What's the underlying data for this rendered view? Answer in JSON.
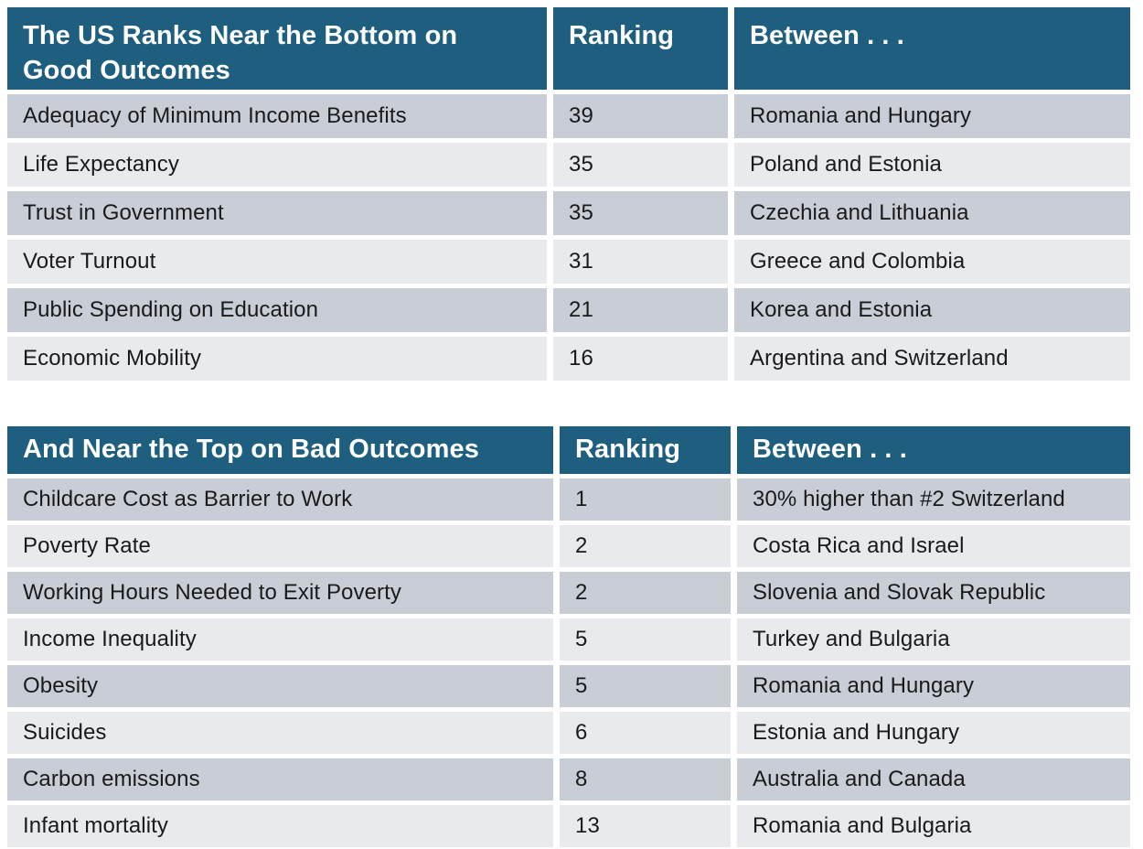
{
  "colors": {
    "header_bg": "#1E5F80",
    "header_text": "#FFFFFF",
    "row_dark": "#C9CED6",
    "row_light": "#E8EAEE",
    "row_text": "#1A1A1A",
    "page_bg": "#FFFFFF"
  },
  "chart_data": [
    {
      "type": "table",
      "title": "The US Ranks Near the Bottom on Good Outcomes",
      "title_lines": [
        "The US Ranks Near the Bottom on",
        "Good Outcomes"
      ],
      "columns": [
        "The US Ranks Near the Bottom on Good Outcomes",
        "Ranking",
        "Between . . ."
      ],
      "rows": [
        [
          "Adequacy of Minimum Income Benefits",
          "39",
          "Romania and Hungary"
        ],
        [
          "Life Expectancy",
          "35",
          "Poland and Estonia"
        ],
        [
          "Trust in Government",
          "35",
          "Czechia and Lithuania"
        ],
        [
          "Voter Turnout",
          "31",
          "Greece and Colombia"
        ],
        [
          "Public Spending on Education",
          "21",
          "Korea and Estonia"
        ],
        [
          "Economic Mobility",
          "16",
          "Argentina and Switzerland"
        ]
      ]
    },
    {
      "type": "table",
      "title": "And Near the Top on Bad Outcomes",
      "title_lines": [
        "And Near the Top on Bad Outcomes"
      ],
      "columns": [
        "And Near the Top on Bad Outcomes",
        "Ranking",
        "Between . . ."
      ],
      "rows": [
        [
          "Childcare Cost as Barrier to Work",
          "1",
          "30% higher than #2 Switzerland"
        ],
        [
          "Poverty Rate",
          "2",
          "Costa Rica and Israel"
        ],
        [
          "Working Hours Needed to Exit Poverty",
          "2",
          "Slovenia and Slovak Republic"
        ],
        [
          "Income Inequality",
          "5",
          "Turkey and Bulgaria"
        ],
        [
          "Obesity",
          "5",
          "Romania and Hungary"
        ],
        [
          "Suicides",
          "6",
          "Estonia and Hungary"
        ],
        [
          "Carbon emissions",
          "8",
          "Australia and Canada"
        ],
        [
          "Infant mortality",
          "13",
          "Romania and Bulgaria"
        ]
      ]
    }
  ]
}
